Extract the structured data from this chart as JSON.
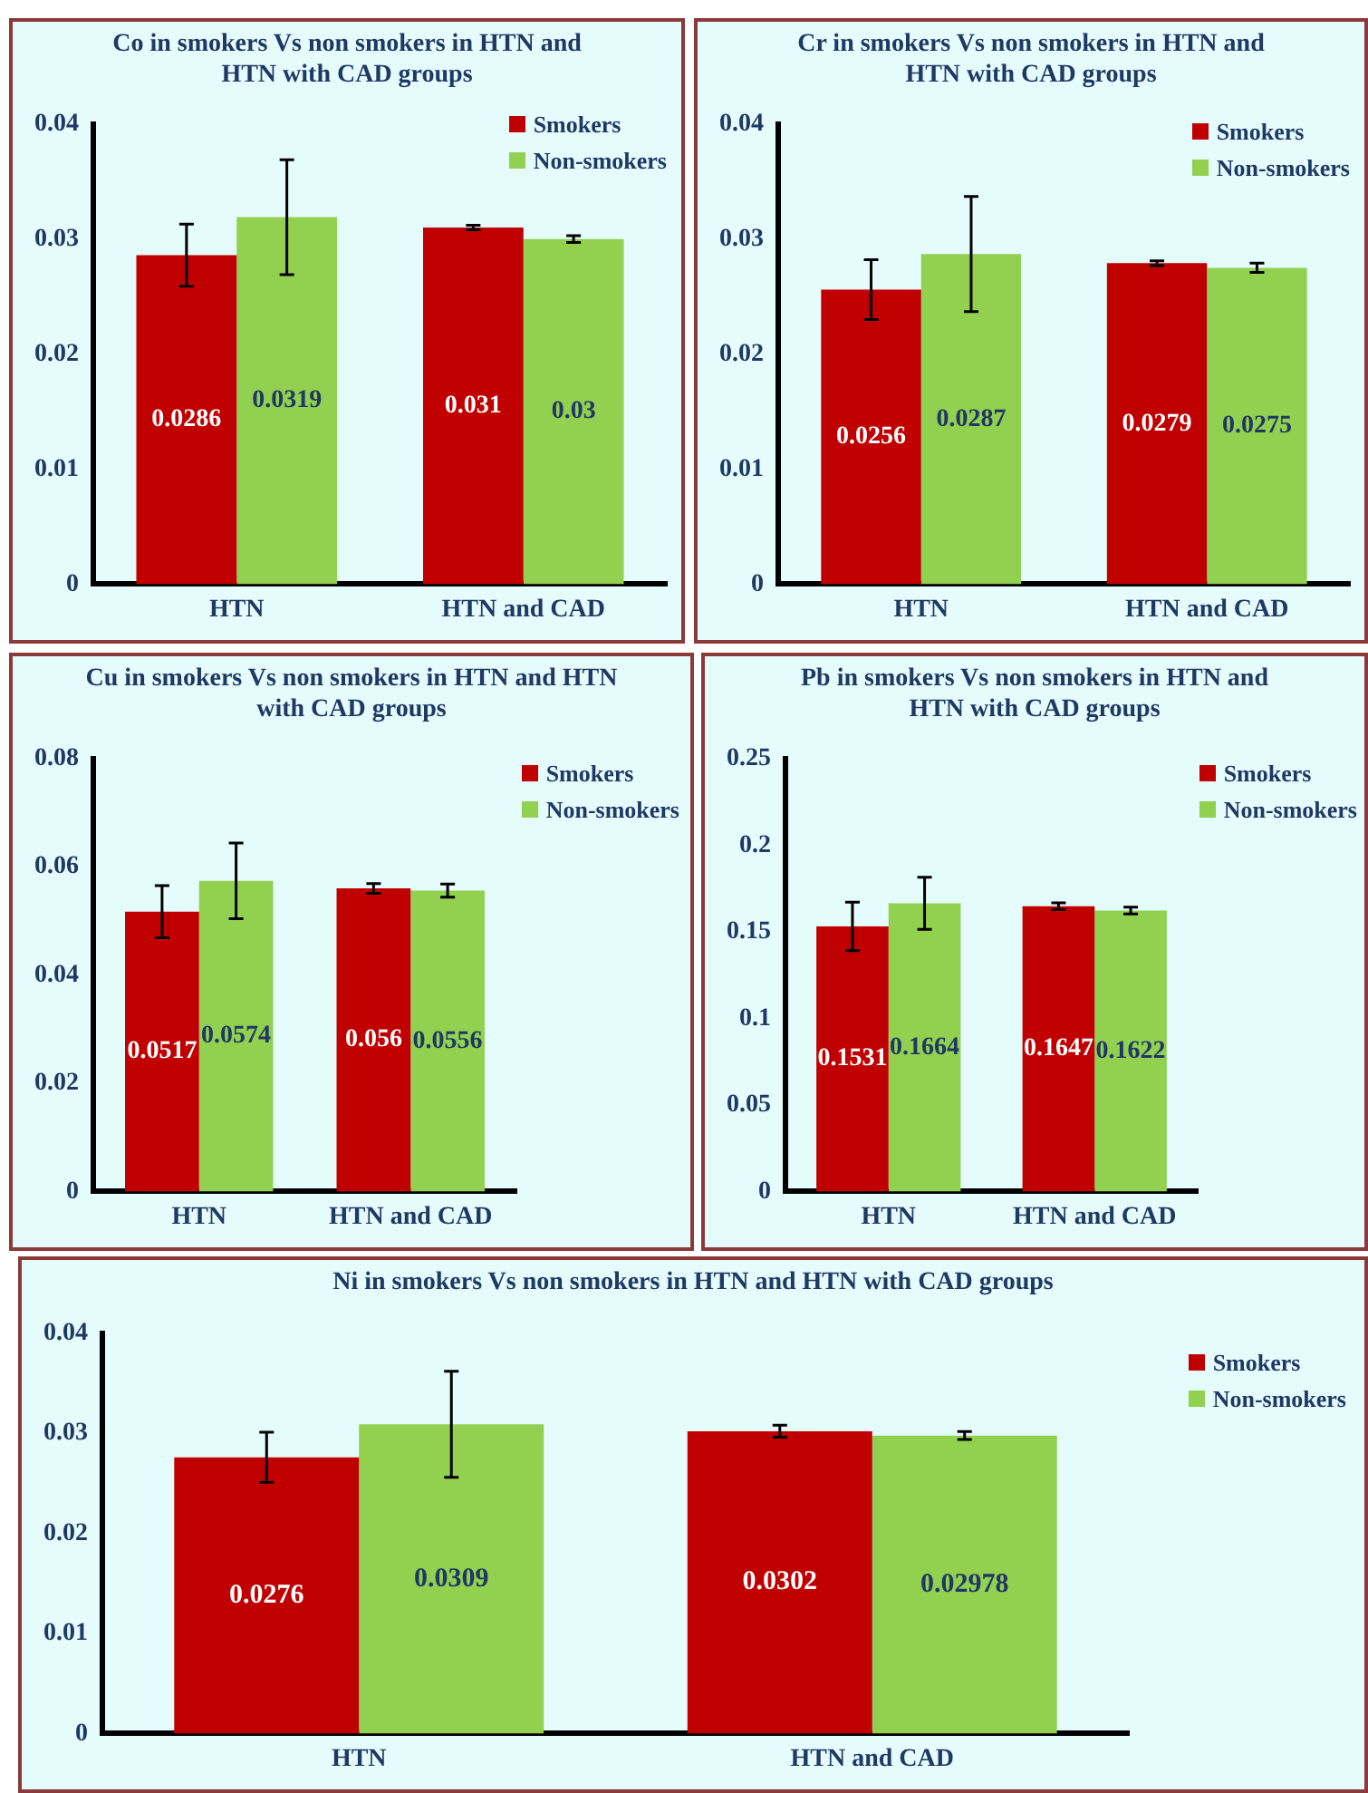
{
  "chart_data": [
    {
      "type": "bar",
      "title": "Co in smokers Vs non smokers in HTN and HTN with CAD groups",
      "categories": [
        "HTN",
        "HTN and CAD"
      ],
      "series": [
        {
          "name": "Smokers",
          "color": "#c00000",
          "values": [
            0.0286,
            0.031
          ],
          "errors": [
            0.0027,
            0.0002
          ]
        },
        {
          "name": "Non-smokers",
          "color": "#92d050",
          "values": [
            0.0319,
            0.03
          ],
          "errors": [
            0.005,
            0.0003
          ]
        }
      ],
      "ylim": [
        0,
        0.04
      ],
      "yticks": [
        0,
        0.01,
        0.02,
        0.03,
        0.04
      ],
      "data_labels": true,
      "legend": "top right"
    },
    {
      "type": "bar",
      "title": "Cr in smokers Vs non smokers in HTN and HTN with CAD groups",
      "categories": [
        "HTN",
        "HTN and CAD"
      ],
      "series": [
        {
          "name": "Smokers",
          "color": "#c00000",
          "values": [
            0.0256,
            0.0279
          ],
          "errors": [
            0.0026,
            0.0002
          ]
        },
        {
          "name": "Non-smokers",
          "color": "#92d050",
          "values": [
            0.0287,
            0.0275
          ],
          "errors": [
            0.005,
            0.0004
          ]
        }
      ],
      "ylim": [
        0,
        0.04
      ],
      "yticks": [
        0,
        0.01,
        0.02,
        0.03,
        0.04
      ],
      "data_labels": true,
      "legend": "top right"
    },
    {
      "type": "bar",
      "title": "Cu in smokers Vs non smokers in HTN and HTN with CAD groups",
      "categories": [
        "HTN",
        "HTN and CAD"
      ],
      "series": [
        {
          "name": "Smokers",
          "color": "#c00000",
          "values": [
            0.0517,
            0.056
          ],
          "errors": [
            0.0048,
            0.0009
          ]
        },
        {
          "name": "Non-smokers",
          "color": "#92d050",
          "values": [
            0.0574,
            0.0556
          ],
          "errors": [
            0.007,
            0.0012
          ]
        }
      ],
      "ylim": [
        0,
        0.08
      ],
      "yticks": [
        0,
        0.02,
        0.04,
        0.06,
        0.08
      ],
      "data_labels": true,
      "legend": "top right"
    },
    {
      "type": "bar",
      "title": "Pb in smokers Vs non smokers in HTN and HTN with CAD groups",
      "categories": [
        "HTN",
        "HTN and CAD"
      ],
      "series": [
        {
          "name": "Smokers",
          "color": "#c00000",
          "values": [
            0.1531,
            0.1647
          ],
          "errors": [
            0.014,
            0.002
          ]
        },
        {
          "name": "Non-smokers",
          "color": "#92d050",
          "values": [
            0.1664,
            0.1622
          ],
          "errors": [
            0.015,
            0.002
          ]
        }
      ],
      "ylim": [
        0,
        0.25
      ],
      "yticks": [
        0,
        0.05,
        0.1,
        0.15,
        0.2,
        0.25
      ],
      "data_labels": true,
      "legend": "top right"
    },
    {
      "type": "bar",
      "title": "Ni in smokers Vs non smokers in HTN and HTN with CAD groups",
      "categories": [
        "HTN",
        "HTN and CAD"
      ],
      "series": [
        {
          "name": "Smokers",
          "color": "#c00000",
          "values": [
            0.0276,
            0.0302
          ],
          "errors": [
            0.0025,
            0.0006
          ]
        },
        {
          "name": "Non-smokers",
          "color": "#92d050",
          "values": [
            0.0309,
            0.02978
          ],
          "errors": [
            0.0053,
            0.0004
          ]
        }
      ],
      "ylim": [
        0,
        0.04
      ],
      "yticks": [
        0,
        0.01,
        0.02,
        0.03,
        0.04
      ],
      "data_labels": true,
      "legend": "top right"
    }
  ]
}
